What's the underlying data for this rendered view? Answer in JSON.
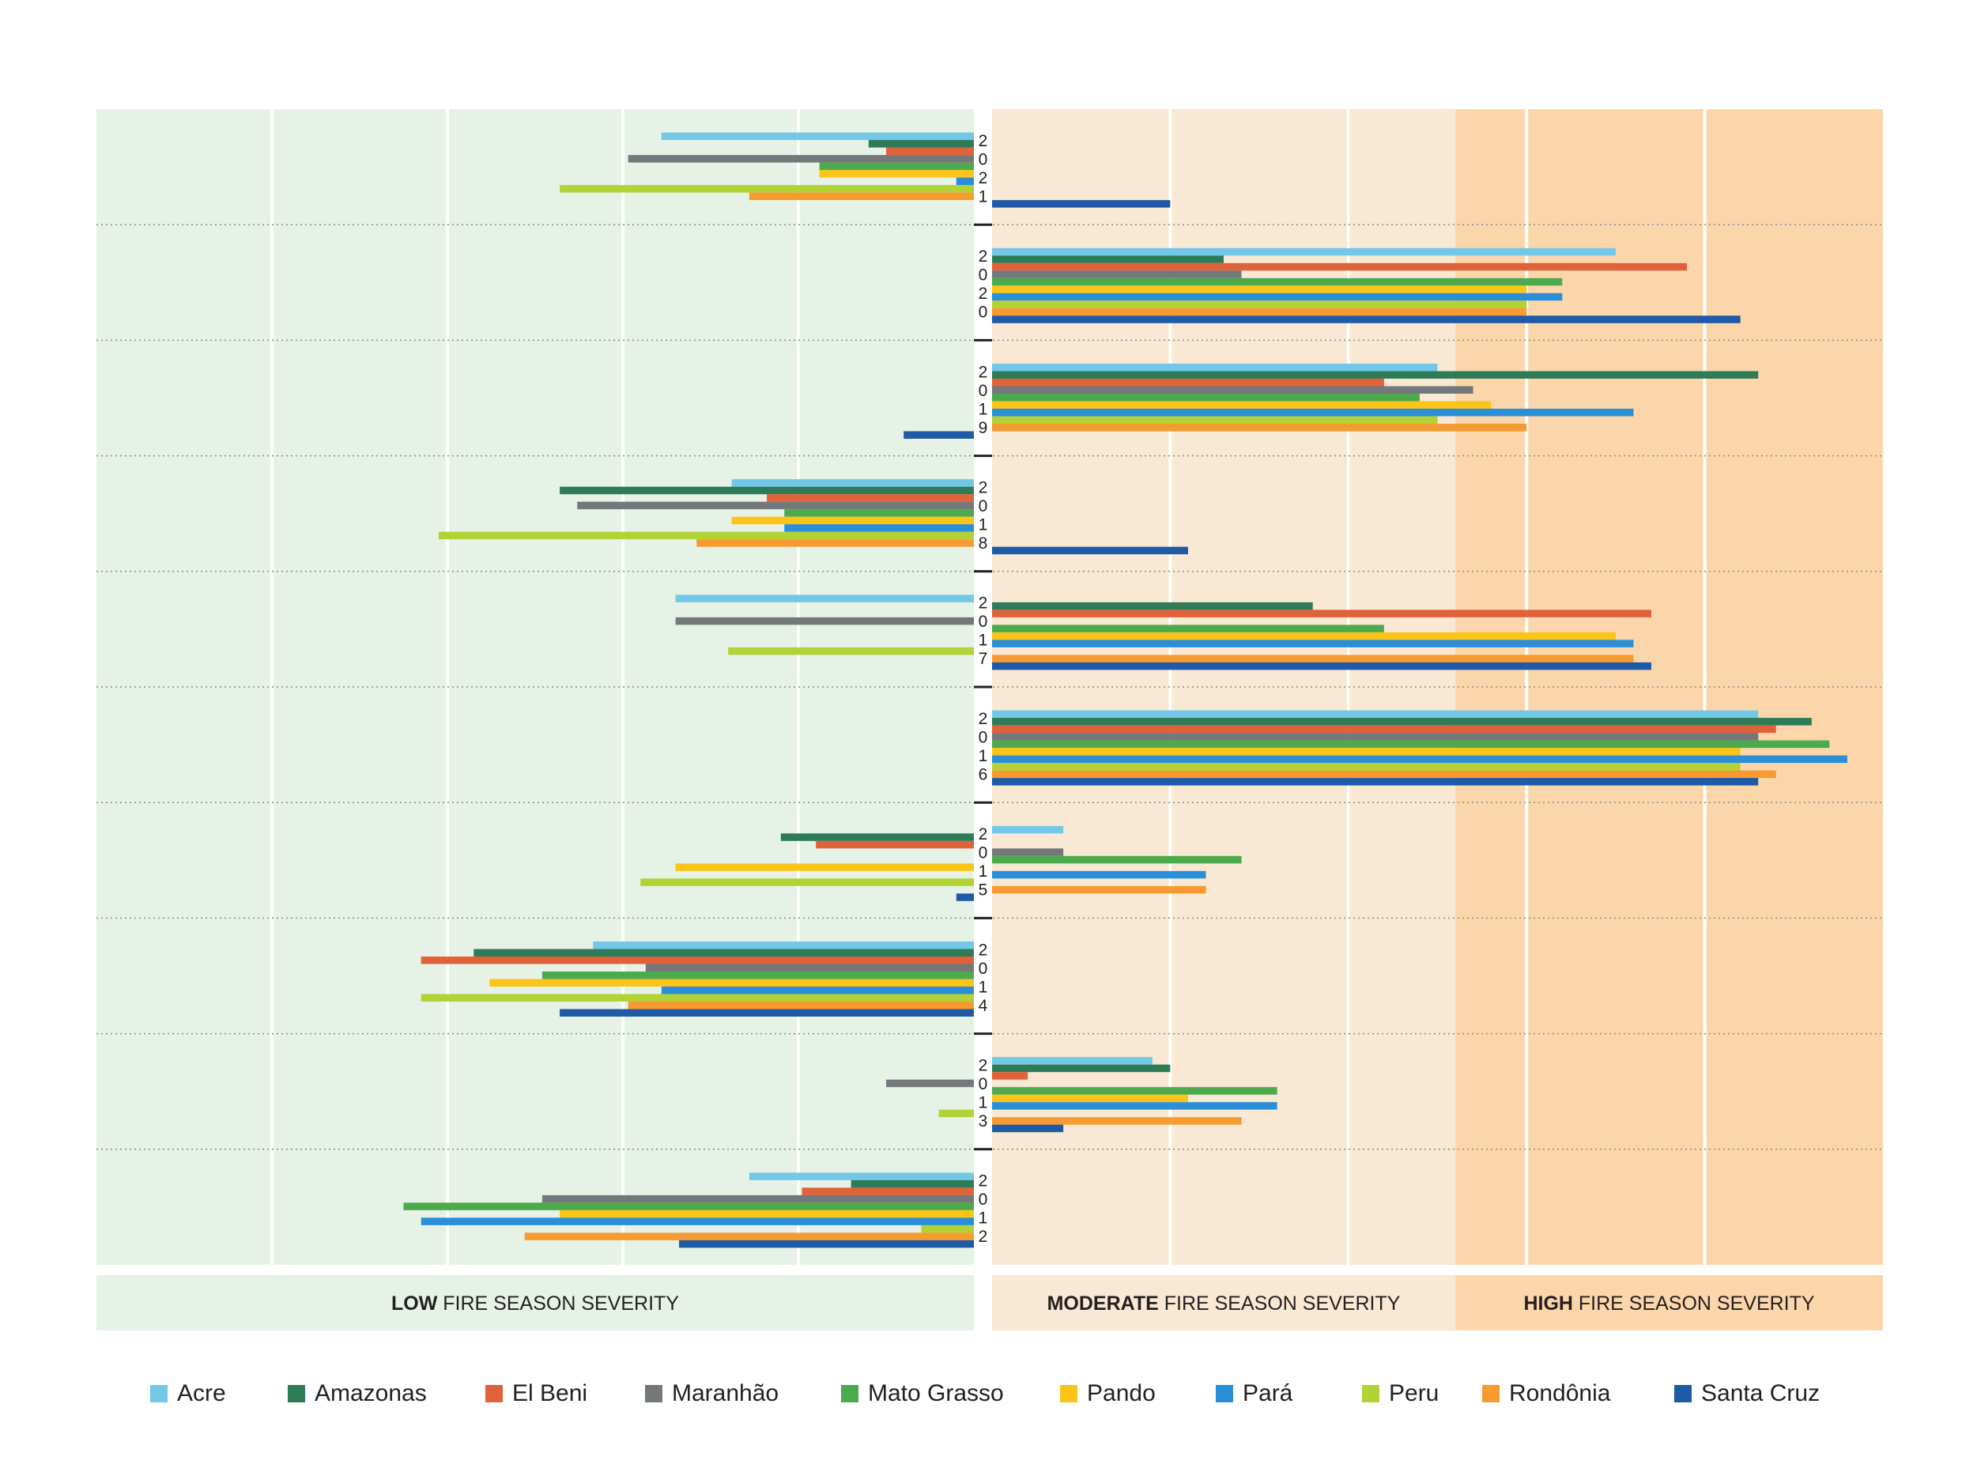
{
  "chart_data": {
    "type": "bar",
    "orientation": "horizontal-diverging",
    "x_range": [
      -5,
      5
    ],
    "grid": true,
    "legend_position": "bottom",
    "severity_zones": [
      {
        "bold": "LOW",
        "rest": " FIRE SEASON SEVERITY",
        "from": -5,
        "to": 0,
        "color": "#e6f2e6"
      },
      {
        "bold": "MODERATE",
        "rest": " FIRE SEASON SEVERITY",
        "from": 0,
        "to": 2.6,
        "color": "#f9e8d3"
      },
      {
        "bold": "HIGH",
        "rest": " FIRE SEASON SEVERITY",
        "from": 2.6,
        "to": 5,
        "color": "#fcd6ab"
      }
    ],
    "categories": [
      "2021",
      "2020",
      "2019",
      "2018",
      "2017",
      "2016",
      "2015",
      "2014",
      "2013",
      "2012"
    ],
    "series": [
      {
        "name": "Acre",
        "color": "#73c8e8",
        "values": [
          -1.78,
          3.5,
          2.5,
          -1.38,
          -1.7,
          4.3,
          0.4,
          -2.17,
          0.9,
          -1.28
        ]
      },
      {
        "name": "Amazonas",
        "color": "#2e7b57",
        "values": [
          -0.6,
          1.3,
          4.3,
          -2.36,
          1.8,
          4.6,
          -1.1,
          -2.85,
          1.0,
          -0.7
        ]
      },
      {
        "name": "El Beni",
        "color": "#e0623a",
        "values": [
          -0.5,
          3.9,
          2.2,
          -1.18,
          3.7,
          4.4,
          -0.9,
          -3.15,
          0.2,
          -0.98
        ]
      },
      {
        "name": "Maranhão",
        "color": "#74787a",
        "values": [
          -1.97,
          1.4,
          2.7,
          -2.26,
          -1.7,
          4.3,
          0.4,
          -1.87,
          -0.5,
          -2.46
        ]
      },
      {
        "name": "Mato Grasso",
        "color": "#4caa4c",
        "values": [
          -0.88,
          3.2,
          2.4,
          -1.08,
          2.2,
          4.7,
          1.4,
          -2.46,
          1.6,
          -3.25
        ]
      },
      {
        "name": "Pando",
        "color": "#fcc418",
        "values": [
          -0.88,
          3.0,
          2.8,
          -1.38,
          3.5,
          4.2,
          -1.7,
          -2.76,
          1.1,
          -2.36
        ]
      },
      {
        "name": "Pará",
        "color": "#2a8fd6",
        "values": [
          -0.1,
          3.2,
          3.6,
          -1.08,
          3.6,
          4.8,
          1.2,
          -1.78,
          1.6,
          -3.15
        ]
      },
      {
        "name": "Peru",
        "color": "#b2d235",
        "values": [
          -2.36,
          3.0,
          2.5,
          -3.05,
          -1.4,
          4.2,
          -1.9,
          -3.15,
          -0.2,
          -0.3
        ]
      },
      {
        "name": "Rondônia",
        "color": "#f79a30",
        "values": [
          -1.28,
          3.0,
          3.0,
          -1.58,
          3.6,
          4.4,
          1.2,
          -1.97,
          1.4,
          -2.56
        ]
      },
      {
        "name": "Santa Cruz",
        "color": "#1f5aa6",
        "values": [
          1.0,
          4.2,
          -0.4,
          1.1,
          3.7,
          4.3,
          -0.1,
          -2.36,
          0.4,
          -1.68
        ]
      }
    ]
  }
}
